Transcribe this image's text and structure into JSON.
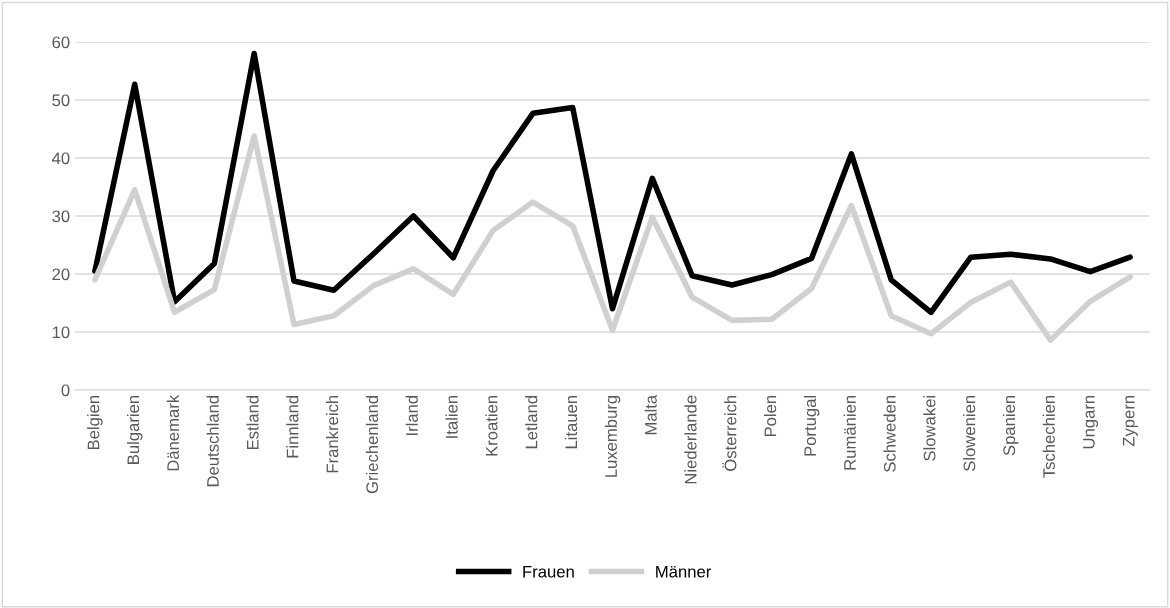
{
  "chart_data": {
    "type": "line",
    "categories": [
      "Belgien",
      "Bulgarien",
      "Dänemark",
      "Deutschland",
      "Estland",
      "Finnland",
      "Frankreich",
      "Griechenland",
      "Irland",
      "Italien",
      "Kroatien",
      "Letland",
      "Litauen",
      "Luxemburg",
      "Malta",
      "Niederlande",
      "Österreich",
      "Polen",
      "Portugal",
      "Rumänien",
      "Schweden",
      "Slowakei",
      "Slowenien",
      "Spanien",
      "Tschechien",
      "Ungarn",
      "Zypern"
    ],
    "series": [
      {
        "name": "Frauen",
        "color": "#000000",
        "values": [
          20.5,
          52.7,
          15.2,
          21.8,
          58,
          18.8,
          17.2,
          23.5,
          30,
          22.8,
          37.8,
          47.7,
          48.7,
          14,
          36.5,
          19.7,
          18.1,
          19.9,
          22.7,
          40.7,
          19,
          13.4,
          22.9,
          23.4,
          22.6,
          20.4,
          22.9
        ]
      },
      {
        "name": "Männer",
        "color": "#d0d0d0",
        "values": [
          19,
          34.5,
          13.4,
          17.3,
          43.8,
          11.3,
          12.8,
          18,
          20.9,
          16.5,
          27.5,
          32.4,
          28.3,
          10.3,
          29.8,
          16,
          12,
          12.2,
          17.5,
          31.8,
          12.8,
          9.7,
          15.1,
          18.6,
          8.6,
          15.3,
          19.5
        ]
      }
    ],
    "ylim": [
      0,
      60
    ],
    "yticks": [
      0,
      10,
      20,
      30,
      40,
      50,
      60
    ],
    "grid": "y",
    "legend": "bottom",
    "marker": "none",
    "line_style": "solid"
  }
}
